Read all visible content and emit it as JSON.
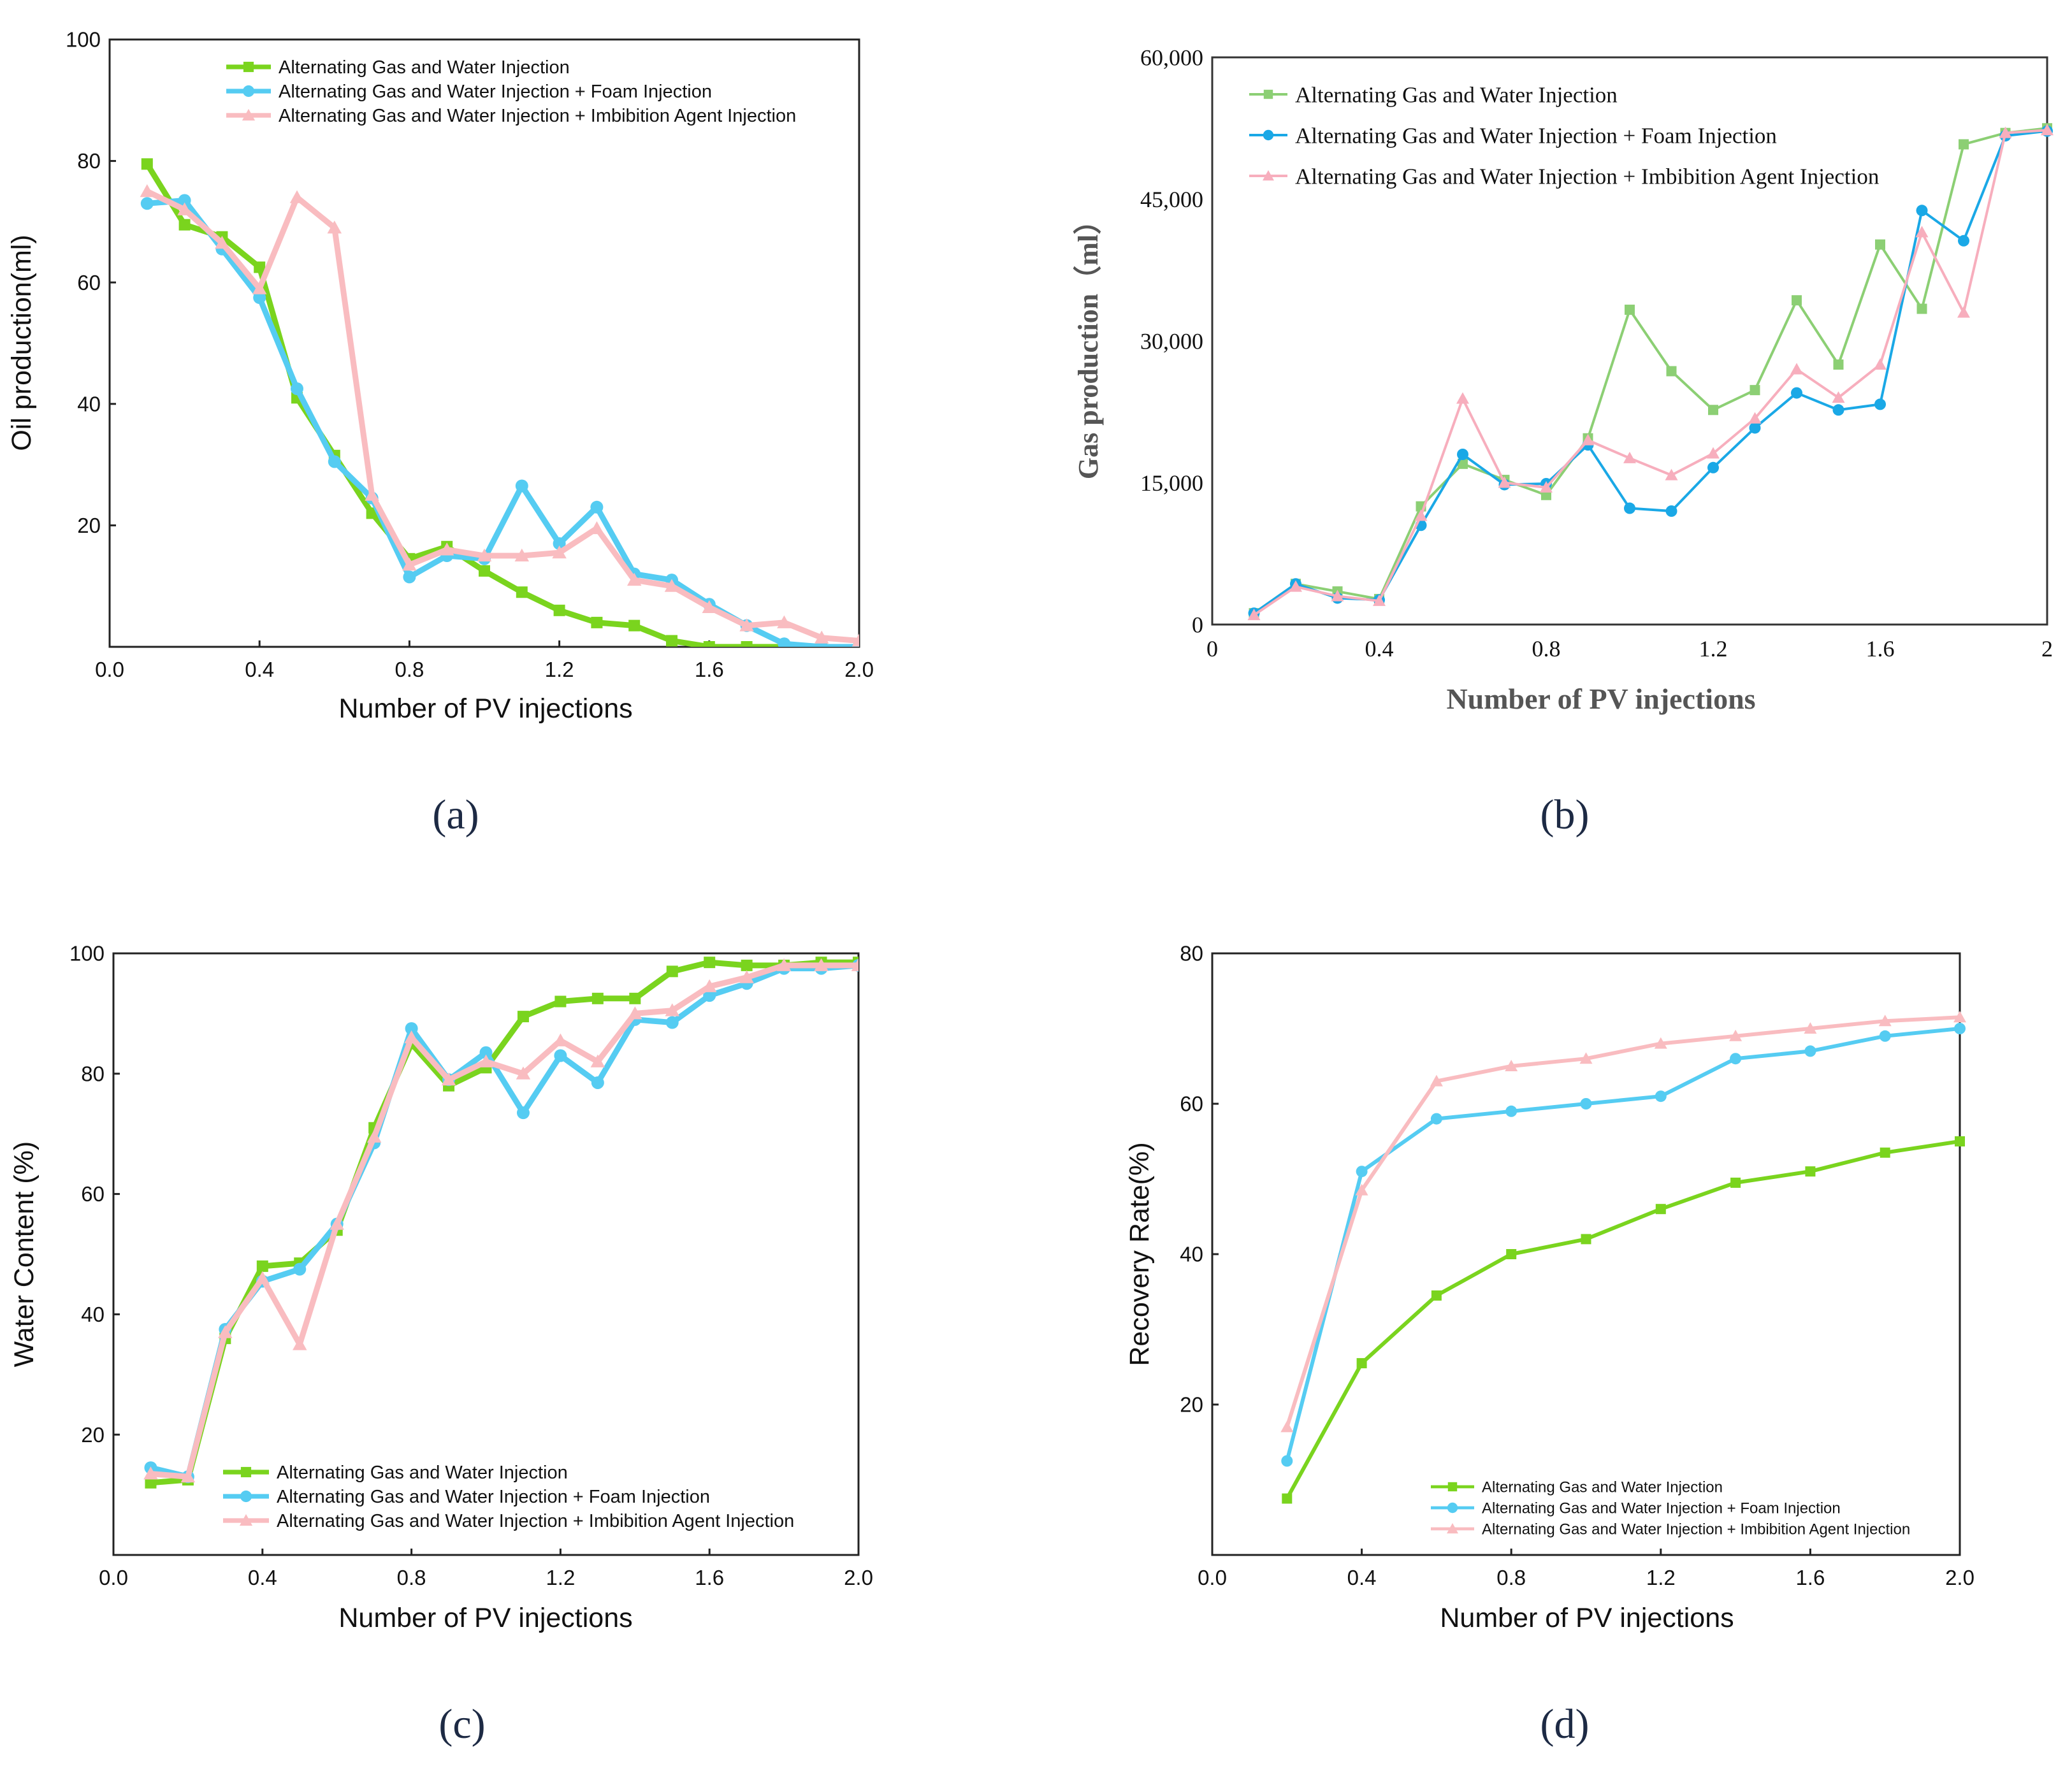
{
  "colors": {
    "agw_a": "#7ad41e",
    "foam_a": "#55ccf2",
    "imb_a": "#f9bcc0",
    "agw_b": "#8ccf74",
    "foam_b": "#1aa8e6",
    "imb_b": "#f7aebd",
    "axis": "#222222"
  },
  "chart_data": [
    {
      "id": "a",
      "type": "line",
      "panel_label": "(a)",
      "xlabel": "Number of PV injections",
      "ylabel": "Oil production(ml)",
      "xlim": [
        0.0,
        2.0
      ],
      "ylim": [
        0,
        100
      ],
      "xticks": [
        "0.0",
        "0.4",
        "0.8",
        "1.2",
        "1.6",
        "2.0"
      ],
      "yticks": [
        "20",
        "40",
        "60",
        "80",
        "100"
      ],
      "legend_position": "top",
      "x": [
        0.1,
        0.2,
        0.3,
        0.4,
        0.5,
        0.6,
        0.7,
        0.8,
        0.9,
        1.0,
        1.1,
        1.2,
        1.3,
        1.4,
        1.5,
        1.6,
        1.7,
        1.8,
        1.9,
        2.0
      ],
      "series": [
        {
          "name": "Alternating Gas and Water Injection",
          "marker": "square",
          "values": [
            79.5,
            69.5,
            67.5,
            62.5,
            41,
            31.5,
            22,
            14.5,
            16.5,
            12.5,
            9,
            6,
            4,
            3.5,
            1,
            0,
            0,
            0,
            0,
            0
          ]
        },
        {
          "name": "Alternating Gas and Water Injection + Foam Injection",
          "marker": "circle",
          "values": [
            73,
            73.5,
            65.5,
            57.5,
            42.5,
            30.5,
            24.5,
            11.5,
            15,
            14.5,
            26.5,
            17,
            23,
            12,
            11,
            7,
            3.5,
            0.5,
            0,
            0
          ]
        },
        {
          "name": "Alternating Gas and Water Injection + Imbibition Agent Injection",
          "marker": "triangle",
          "values": [
            75,
            72,
            66.5,
            59,
            74,
            69,
            25,
            13.5,
            16,
            15,
            15,
            15.5,
            19.5,
            11,
            10,
            6.5,
            3.5,
            4,
            1.5,
            1
          ]
        }
      ]
    },
    {
      "id": "b",
      "type": "line",
      "panel_label": "(b)",
      "xlabel": "Number of PV injections",
      "ylabel": "Gas production（ml）",
      "xlim": [
        0,
        2
      ],
      "ylim": [
        0,
        60000
      ],
      "xticks": [
        "0",
        "0.4",
        "0.8",
        "1.2",
        "1.6",
        "2"
      ],
      "yticks": [
        "0",
        "15,000",
        "30,000",
        "45,000",
        "60,000"
      ],
      "legend_position": "top-left",
      "x": [
        0.1,
        0.2,
        0.3,
        0.4,
        0.5,
        0.6,
        0.7,
        0.8,
        0.9,
        1.0,
        1.1,
        1.2,
        1.3,
        1.4,
        1.5,
        1.6,
        1.7,
        1.8,
        1.9,
        2.0
      ],
      "series": [
        {
          "name": "Alternating Gas and Water Injection",
          "marker": "square",
          "values": [
            1200,
            4300,
            3500,
            2700,
            12500,
            17000,
            15300,
            13700,
            19700,
            33300,
            26800,
            22700,
            24800,
            34300,
            27500,
            40200,
            33400,
            50800,
            52000,
            52500
          ]
        },
        {
          "name": "Alternating Gas and Water Injection + Foam Injection",
          "marker": "circle",
          "values": [
            1200,
            4300,
            2800,
            2600,
            10500,
            18000,
            14800,
            14900,
            19000,
            12300,
            12000,
            16600,
            20800,
            24500,
            22700,
            23300,
            43800,
            40600,
            51700,
            52200
          ]
        },
        {
          "name": "Alternating Gas and Water Injection + Imbibition Agent Injection",
          "marker": "triangle",
          "values": [
            1000,
            4000,
            3000,
            2500,
            11500,
            23900,
            15000,
            14500,
            19500,
            17600,
            15800,
            18100,
            21800,
            27000,
            24000,
            27500,
            41500,
            33000,
            52000,
            52300
          ]
        }
      ]
    },
    {
      "id": "c",
      "type": "line",
      "panel_label": "(c)",
      "xlabel": "Number of PV injections",
      "ylabel": "Water Content (%)",
      "xlim": [
        0.0,
        2.0
      ],
      "ylim": [
        0,
        100
      ],
      "xticks": [
        "0.0",
        "0.4",
        "0.8",
        "1.2",
        "1.6",
        "2.0"
      ],
      "yticks": [
        "20",
        "40",
        "60",
        "80",
        "100"
      ],
      "legend_position": "bottom",
      "x": [
        0.1,
        0.2,
        0.3,
        0.4,
        0.5,
        0.6,
        0.7,
        0.8,
        0.9,
        1.0,
        1.1,
        1.2,
        1.3,
        1.4,
        1.5,
        1.6,
        1.7,
        1.8,
        1.9,
        2.0
      ],
      "series": [
        {
          "name": "Alternating Gas and Water Injection",
          "marker": "square",
          "values": [
            12,
            12.5,
            36,
            48,
            48.5,
            54,
            71,
            85,
            78,
            81,
            89.5,
            92,
            92.5,
            92.5,
            97,
            98.5,
            98,
            98,
            98.5,
            98.5
          ]
        },
        {
          "name": "Alternating Gas and Water Injection + Foam Injection",
          "marker": "circle",
          "values": [
            14.5,
            13,
            37.5,
            45.5,
            47.5,
            55,
            68.5,
            87.5,
            79,
            83.5,
            73.5,
            83,
            78.5,
            89,
            88.5,
            93,
            95,
            97.5,
            97.5,
            98
          ]
        },
        {
          "name": "Alternating Gas and Water Injection + Imbibition Agent Injection",
          "marker": "triangle",
          "values": [
            13.5,
            13,
            37,
            46,
            35,
            55,
            69.5,
            86,
            79,
            82,
            80,
            85.5,
            82,
            90,
            90.5,
            94.5,
            96,
            98,
            98,
            98
          ]
        }
      ]
    },
    {
      "id": "d",
      "type": "line",
      "panel_label": "(d)",
      "xlabel": "Number of PV injections",
      "ylabel": "Recovery Rate(%)",
      "xlim": [
        0.0,
        2.0
      ],
      "ylim": [
        0,
        80
      ],
      "xticks": [
        "0.0",
        "0.4",
        "0.8",
        "1.2",
        "1.6",
        "2.0"
      ],
      "yticks": [
        "20",
        "40",
        "60",
        "80"
      ],
      "legend_position": "bottom-right",
      "x": [
        0.2,
        0.4,
        0.6,
        0.8,
        1.0,
        1.2,
        1.4,
        1.6,
        1.8,
        2.0
      ],
      "series": [
        {
          "name": "Alternating Gas and Water Injection",
          "marker": "square",
          "values": [
            7.5,
            25.5,
            34.5,
            40,
            42,
            46,
            49.5,
            51,
            53.5,
            55
          ]
        },
        {
          "name": "Alternating Gas and Water Injection + Foam Injection",
          "marker": "circle",
          "values": [
            12.5,
            51,
            58,
            59,
            60,
            61,
            66,
            67,
            69,
            70
          ]
        },
        {
          "name": "Alternating Gas and Water Injection + Imbibition Agent Injection",
          "marker": "triangle",
          "values": [
            17,
            48.5,
            63,
            65,
            66,
            68,
            69,
            70,
            71,
            71.5
          ]
        }
      ]
    }
  ]
}
